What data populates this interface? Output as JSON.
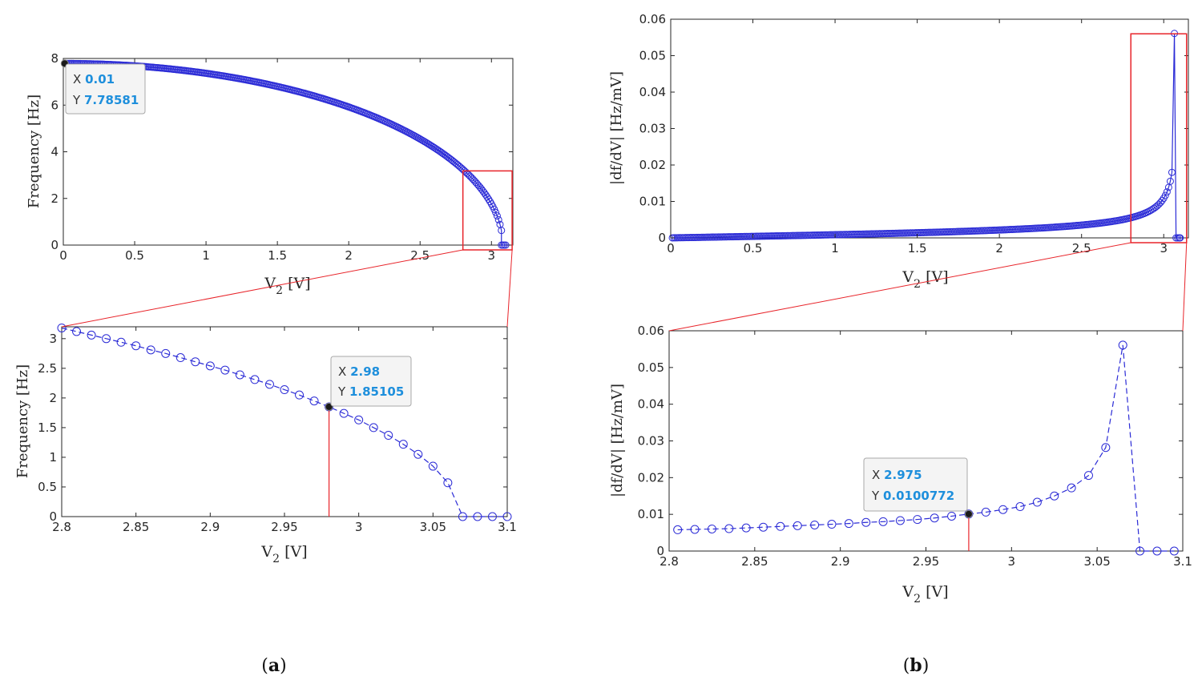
{
  "colors": {
    "marker": "#2b2bd6",
    "highlight": "#e8242a",
    "tip_value": "#1e8fdc"
  },
  "captions": {
    "a": "a",
    "b": "b"
  },
  "chart_data": [
    {
      "id": "a-top",
      "type": "line",
      "xlabel_main": "V",
      "xlabel_sub": "2",
      "xlabel_unit": " [V]",
      "ylabel": "Frequency [Hz]",
      "xlim": [
        0,
        3.15
      ],
      "ylim": [
        0,
        8
      ],
      "xticks": [
        0,
        0.5,
        1,
        1.5,
        2,
        2.5,
        3
      ],
      "xtick_labels": [
        "0",
        "0.5",
        "1",
        "1.5",
        "2",
        "2.5",
        "3"
      ],
      "yticks": [
        0,
        2,
        4,
        6,
        8
      ],
      "ytick_labels": [
        "0",
        "2",
        "4",
        "6",
        "8"
      ],
      "series": [
        {
          "name": "frequency",
          "formula": "7.7858*sqrt(1-(V/3.08)^2)",
          "x_start": 0.01,
          "x_end": 3.07,
          "x_step": 0.01,
          "zero_x": [
            3.07,
            3.08,
            3.09,
            3.1
          ]
        }
      ],
      "zoom_box": {
        "x": [
          2.8,
          3.1
        ],
        "y": [
          0,
          3.18
        ]
      },
      "datatip": {
        "x": 0.01,
        "y": 7.78581,
        "x_label": "X",
        "y_label": "Y",
        "x_text": "0.01",
        "y_text": "7.78581"
      }
    },
    {
      "id": "a-bottom",
      "type": "line",
      "xlabel_main": "V",
      "xlabel_sub": "2",
      "xlabel_unit": " [V]",
      "ylabel": "Frequency [Hz]",
      "xlim": [
        2.8,
        3.1
      ],
      "ylim": [
        0,
        3.2
      ],
      "xticks": [
        2.8,
        2.85,
        2.9,
        2.95,
        3,
        3.05,
        3.1
      ],
      "xtick_labels": [
        "2.8",
        "2.85",
        "2.9",
        "2.95",
        "3",
        "3.05",
        "3.1"
      ],
      "yticks": [
        0,
        0.5,
        1,
        1.5,
        2,
        2.5,
        3
      ],
      "ytick_labels": [
        "0",
        "0.5",
        "1",
        "1.5",
        "2",
        "2.5",
        "3"
      ],
      "series": [
        {
          "name": "frequency",
          "x": [
            2.8,
            2.81,
            2.82,
            2.83,
            2.84,
            2.85,
            2.86,
            2.87,
            2.88,
            2.89,
            2.9,
            2.91,
            2.92,
            2.93,
            2.94,
            2.95,
            2.96,
            2.97,
            2.98,
            2.99,
            3.0,
            3.01,
            3.02,
            3.03,
            3.04,
            3.05,
            3.06,
            3.07,
            3.08,
            3.09,
            3.1
          ],
          "values": [
            3.18,
            3.12,
            3.06,
            3.0,
            2.94,
            2.88,
            2.81,
            2.75,
            2.68,
            2.61,
            2.54,
            2.47,
            2.39,
            2.31,
            2.23,
            2.14,
            2.05,
            1.95,
            1.85,
            1.74,
            1.63,
            1.5,
            1.37,
            1.22,
            1.05,
            0.85,
            0.57,
            0,
            0,
            0,
            0
          ]
        }
      ],
      "datatip": {
        "x": 2.98,
        "y": 1.85105,
        "x_label": "X",
        "y_label": "Y",
        "x_text": "2.98",
        "y_text": "1.85105"
      }
    },
    {
      "id": "b-top",
      "type": "line",
      "xlabel_main": "V",
      "xlabel_sub": "2",
      "xlabel_unit": " [V]",
      "ylabel": "|df/dV| [Hz/mV]",
      "xlim": [
        0,
        3.15
      ],
      "ylim": [
        0,
        0.06
      ],
      "xticks": [
        0,
        0.5,
        1,
        1.5,
        2,
        2.5,
        3
      ],
      "xtick_labels": [
        "0",
        "0.5",
        "1",
        "1.5",
        "2",
        "2.5",
        "3"
      ],
      "yticks": [
        0,
        0.01,
        0.02,
        0.03,
        0.04,
        0.05,
        0.06
      ],
      "ytick_labels": [
        "0",
        "0.01",
        "0.02",
        "0.03",
        "0.04",
        "0.05",
        "0.06"
      ],
      "series": [
        {
          "name": "slope",
          "formula": "0.002528*V/(3.08*sqrt(1-(V/3.08)^2))",
          "x_start": 0.01,
          "x_end": 3.05,
          "x_step": 0.01,
          "peak_x": 3.065,
          "peak_y": 0.0561,
          "zero_x": [
            3.075,
            3.085,
            3.095,
            3.1
          ]
        }
      ],
      "zoom_box": {
        "x": [
          2.8,
          3.1
        ],
        "y": [
          0,
          0.056
        ]
      }
    },
    {
      "id": "b-bottom",
      "type": "line",
      "xlabel_main": "V",
      "xlabel_sub": "2",
      "xlabel_unit": " [V]",
      "ylabel": "|df/dV| [Hz/mV]",
      "xlim": [
        2.8,
        3.1
      ],
      "ylim": [
        0,
        0.06
      ],
      "xticks": [
        2.8,
        2.85,
        2.9,
        2.95,
        3,
        3.05,
        3.1
      ],
      "xtick_labels": [
        "2.8",
        "2.85",
        "2.9",
        "2.95",
        "3",
        "3.05",
        "3.1"
      ],
      "yticks": [
        0,
        0.01,
        0.02,
        0.03,
        0.04,
        0.05,
        0.06
      ],
      "ytick_labels": [
        "0",
        "0.01",
        "0.02",
        "0.03",
        "0.04",
        "0.05",
        "0.06"
      ],
      "series": [
        {
          "name": "slope",
          "x": [
            2.805,
            2.815,
            2.825,
            2.835,
            2.845,
            2.855,
            2.865,
            2.875,
            2.885,
            2.895,
            2.905,
            2.915,
            2.925,
            2.935,
            2.945,
            2.955,
            2.965,
            2.975,
            2.985,
            2.995,
            3.005,
            3.015,
            3.025,
            3.035,
            3.045,
            3.055,
            3.065,
            3.075,
            3.085,
            3.095
          ],
          "values": [
            0.0058,
            0.0059,
            0.006,
            0.0061,
            0.0063,
            0.0065,
            0.0067,
            0.0069,
            0.0071,
            0.0073,
            0.0075,
            0.0078,
            0.008,
            0.0083,
            0.0086,
            0.009,
            0.0095,
            0.0100772,
            0.0106,
            0.0113,
            0.0121,
            0.0133,
            0.015,
            0.0172,
            0.0206,
            0.0282,
            0.0561,
            0,
            0,
            0
          ]
        }
      ],
      "datatip": {
        "x": 2.975,
        "y": 0.0100772,
        "x_label": "X",
        "y_label": "Y",
        "x_text": "2.975",
        "y_text": "0.0100772"
      }
    }
  ]
}
